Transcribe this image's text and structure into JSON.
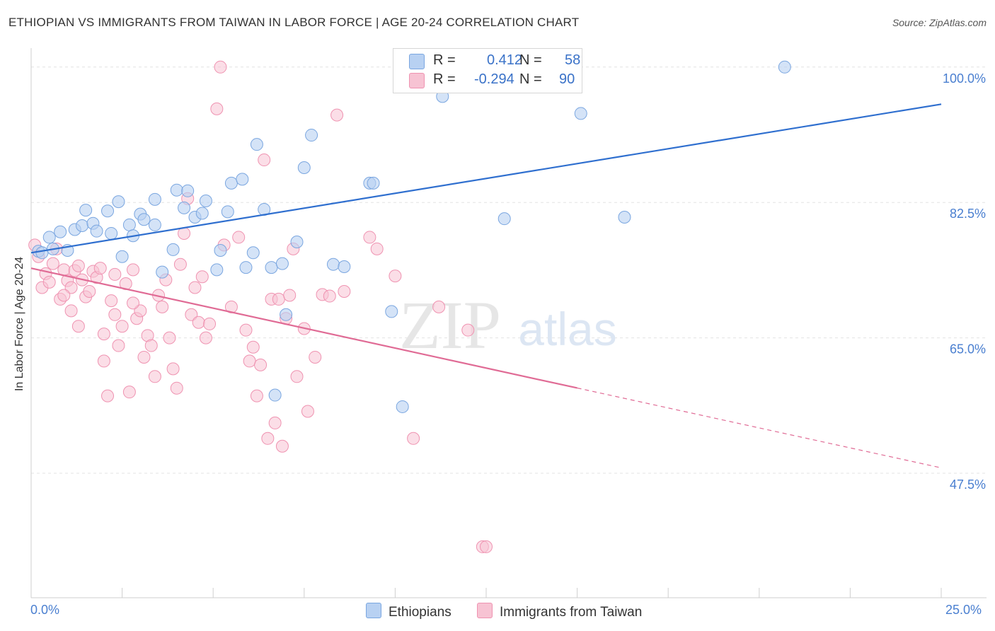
{
  "title": "ETHIOPIAN VS IMMIGRANTS FROM TAIWAN IN LABOR FORCE | AGE 20-24 CORRELATION CHART",
  "source": "Source: ZipAtlas.com",
  "watermark": {
    "zip": "ZIP",
    "atlas": "atlas"
  },
  "legend_stats": {
    "r_label": "R =",
    "n_label": "N =",
    "ethiopians": {
      "r": "0.412",
      "n": "58"
    },
    "taiwan": {
      "r": "-0.294",
      "n": "90"
    }
  },
  "colors": {
    "ethiopians_fill": "#b8d1f2",
    "ethiopians_stroke": "#7aa6e0",
    "ethiopians_line": "#2f6fcf",
    "taiwan_fill": "#f7c3d3",
    "taiwan_stroke": "#ef93b1",
    "taiwan_line": "#e06b95",
    "tick_text": "#4a7fd0",
    "grid": "#e3e3e3"
  },
  "chart_data": {
    "type": "scatter",
    "title": "ETHIOPIAN VS IMMIGRANTS FROM TAIWAN IN LABOR FORCE | AGE 20-24 CORRELATION CHART",
    "xlabel": "",
    "ylabel": "In Labor Force | Age 20-24",
    "xlim": [
      0,
      25
    ],
    "ylim": [
      31.5,
      103
    ],
    "x_tick_labels": [
      "0.0%",
      "25.0%"
    ],
    "y_ticks": [
      47.5,
      65.0,
      82.5,
      100.0
    ],
    "y_tick_labels": [
      "47.5%",
      "65.0%",
      "82.5%",
      "100.0%"
    ],
    "grid": true,
    "legend": "top-center",
    "series": [
      {
        "name": "Ethiopians",
        "trend": {
          "x": [
            0.0,
            25.0
          ],
          "y": [
            76.0,
            95.2
          ],
          "dashed_from": null
        },
        "points": [
          [
            0.2,
            76.2
          ],
          [
            0.3,
            76.0
          ],
          [
            0.5,
            78.0
          ],
          [
            0.6,
            76.5
          ],
          [
            0.8,
            78.7
          ],
          [
            1.0,
            76.3
          ],
          [
            1.2,
            79.0
          ],
          [
            1.4,
            79.5
          ],
          [
            1.5,
            81.5
          ],
          [
            1.7,
            79.8
          ],
          [
            1.8,
            78.8
          ],
          [
            2.1,
            81.4
          ],
          [
            2.2,
            78.5
          ],
          [
            2.4,
            82.6
          ],
          [
            2.5,
            75.5
          ],
          [
            2.7,
            79.6
          ],
          [
            2.8,
            78.2
          ],
          [
            3.0,
            81.0
          ],
          [
            3.1,
            80.3
          ],
          [
            3.4,
            79.6
          ],
          [
            3.4,
            82.9
          ],
          [
            3.6,
            73.5
          ],
          [
            3.9,
            76.4
          ],
          [
            4.0,
            84.1
          ],
          [
            4.2,
            81.8
          ],
          [
            4.3,
            84.0
          ],
          [
            4.5,
            80.6
          ],
          [
            4.7,
            81.1
          ],
          [
            4.8,
            82.7
          ],
          [
            5.1,
            73.8
          ],
          [
            5.2,
            76.3
          ],
          [
            5.4,
            81.3
          ],
          [
            5.5,
            85.0
          ],
          [
            5.8,
            85.5
          ],
          [
            5.9,
            74.1
          ],
          [
            6.1,
            76.0
          ],
          [
            6.2,
            90.0
          ],
          [
            6.4,
            81.6
          ],
          [
            6.6,
            74.1
          ],
          [
            6.7,
            57.6
          ],
          [
            6.9,
            74.6
          ],
          [
            7.0,
            68.0
          ],
          [
            7.3,
            77.4
          ],
          [
            7.5,
            87.0
          ],
          [
            7.7,
            91.2
          ],
          [
            8.3,
            74.5
          ],
          [
            8.6,
            74.2
          ],
          [
            9.3,
            85.0
          ],
          [
            9.4,
            85.0
          ],
          [
            9.9,
            68.4
          ],
          [
            10.2,
            56.1
          ],
          [
            11.3,
            96.2
          ],
          [
            11.7,
            100.0
          ],
          [
            12.0,
            100.0
          ],
          [
            13.0,
            80.4
          ],
          [
            15.1,
            94.0
          ],
          [
            16.3,
            80.6
          ],
          [
            20.7,
            100.0
          ]
        ]
      },
      {
        "name": "Immigrants from Taiwan",
        "trend": {
          "x": [
            0.0,
            25.0
          ],
          "y": [
            74.0,
            48.2
          ],
          "dashed_from": 15.0
        },
        "points": [
          [
            0.1,
            77.0
          ],
          [
            0.2,
            75.5
          ],
          [
            0.3,
            71.5
          ],
          [
            0.4,
            73.3
          ],
          [
            0.5,
            72.2
          ],
          [
            0.6,
            74.6
          ],
          [
            0.7,
            76.5
          ],
          [
            0.8,
            70.0
          ],
          [
            0.9,
            73.8
          ],
          [
            1.0,
            72.4
          ],
          [
            1.1,
            68.5
          ],
          [
            1.2,
            73.7
          ],
          [
            1.3,
            74.3
          ],
          [
            1.4,
            72.5
          ],
          [
            1.5,
            70.3
          ],
          [
            1.6,
            71.0
          ],
          [
            1.7,
            73.6
          ],
          [
            1.8,
            72.8
          ],
          [
            1.9,
            74.0
          ],
          [
            2.0,
            65.5
          ],
          [
            2.0,
            62.0
          ],
          [
            2.1,
            57.5
          ],
          [
            2.2,
            69.8
          ],
          [
            2.3,
            73.2
          ],
          [
            2.3,
            68.0
          ],
          [
            2.4,
            64.0
          ],
          [
            2.5,
            66.5
          ],
          [
            2.6,
            72.0
          ],
          [
            2.7,
            58.0
          ],
          [
            2.8,
            73.8
          ],
          [
            2.9,
            67.5
          ],
          [
            3.0,
            68.5
          ],
          [
            3.1,
            62.5
          ],
          [
            3.2,
            65.3
          ],
          [
            3.3,
            64.0
          ],
          [
            3.4,
            60.0
          ],
          [
            3.5,
            70.5
          ],
          [
            3.6,
            69.0
          ],
          [
            3.7,
            72.5
          ],
          [
            3.8,
            65.0
          ],
          [
            3.9,
            61.0
          ],
          [
            4.0,
            58.5
          ],
          [
            4.1,
            74.5
          ],
          [
            4.2,
            78.5
          ],
          [
            4.3,
            83.0
          ],
          [
            4.4,
            68.0
          ],
          [
            4.5,
            71.5
          ],
          [
            4.6,
            67.0
          ],
          [
            4.7,
            72.9
          ],
          [
            4.8,
            65.0
          ],
          [
            4.9,
            66.8
          ],
          [
            5.1,
            94.6
          ],
          [
            5.2,
            100.0
          ],
          [
            5.3,
            77.0
          ],
          [
            5.5,
            69.0
          ],
          [
            5.7,
            78.0
          ],
          [
            5.9,
            66.0
          ],
          [
            6.0,
            62.0
          ],
          [
            6.1,
            63.8
          ],
          [
            6.2,
            57.5
          ],
          [
            6.3,
            61.5
          ],
          [
            6.4,
            88.0
          ],
          [
            6.5,
            52.0
          ],
          [
            6.6,
            70.0
          ],
          [
            6.7,
            54.0
          ],
          [
            6.8,
            70.0
          ],
          [
            6.9,
            51.0
          ],
          [
            7.0,
            67.5
          ],
          [
            7.1,
            70.5
          ],
          [
            7.2,
            76.5
          ],
          [
            7.3,
            60.0
          ],
          [
            7.5,
            66.2
          ],
          [
            7.6,
            55.5
          ],
          [
            7.8,
            62.5
          ],
          [
            8.0,
            70.6
          ],
          [
            8.2,
            70.4
          ],
          [
            8.4,
            93.8
          ],
          [
            8.6,
            71.0
          ],
          [
            9.3,
            78.0
          ],
          [
            9.5,
            76.5
          ],
          [
            10.0,
            73.0
          ],
          [
            10.5,
            52.0
          ],
          [
            11.2,
            69.0
          ],
          [
            12.0,
            66.0
          ],
          [
            12.4,
            38.0
          ],
          [
            12.5,
            38.0
          ],
          [
            1.1,
            71.5
          ],
          [
            0.9,
            70.5
          ],
          [
            1.3,
            66.5
          ],
          [
            2.8,
            69.5
          ]
        ]
      }
    ]
  },
  "bottom_legend": [
    "Ethiopians",
    "Immigrants from Taiwan"
  ]
}
